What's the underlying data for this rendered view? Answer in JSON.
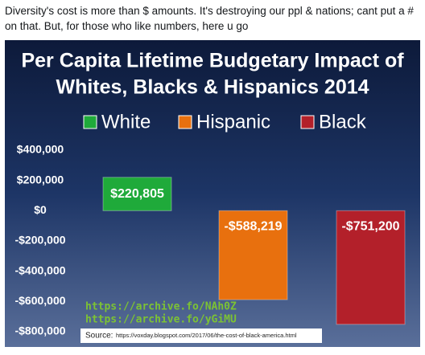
{
  "post": {
    "text": "Diversity's cost is more than $ amounts. It's destroying our ppl & nations; cant put a # on that. But, for those who like numbers, here u go"
  },
  "chart_data": {
    "type": "bar",
    "title": [
      "Per Capita Lifetime Budgetary Impact of",
      "Whites, Blacks & Hispanics 2014"
    ],
    "categories": [
      "White",
      "Hispanic",
      "Black"
    ],
    "values": [
      220805,
      -588219,
      -751200
    ],
    "value_labels": [
      "$220,805",
      "-$588,219",
      "-$751,200"
    ],
    "colors": [
      "#1faa3a",
      "#e8700e",
      "#b3202a"
    ],
    "ylim": [
      -800000,
      400000
    ],
    "yticks": [
      {
        "value": 400000,
        "label": "$400,000"
      },
      {
        "value": 200000,
        "label": "$200,000"
      },
      {
        "value": 0,
        "label": "$0"
      },
      {
        "value": -200000,
        "label": "-$200,000"
      },
      {
        "value": -400000,
        "label": "-$400,000"
      },
      {
        "value": -600000,
        "label": "-$600,000"
      },
      {
        "value": -800000,
        "label": "-$800,000"
      }
    ],
    "grid": false,
    "annotations": [
      "https://archive.fo/NAh0Z",
      "https://archive.fo/yGiMU"
    ],
    "source_label": "Source:",
    "source_url": "https://voxday.blogspot.com/2017/06/the-cost-of-black-america.html"
  }
}
